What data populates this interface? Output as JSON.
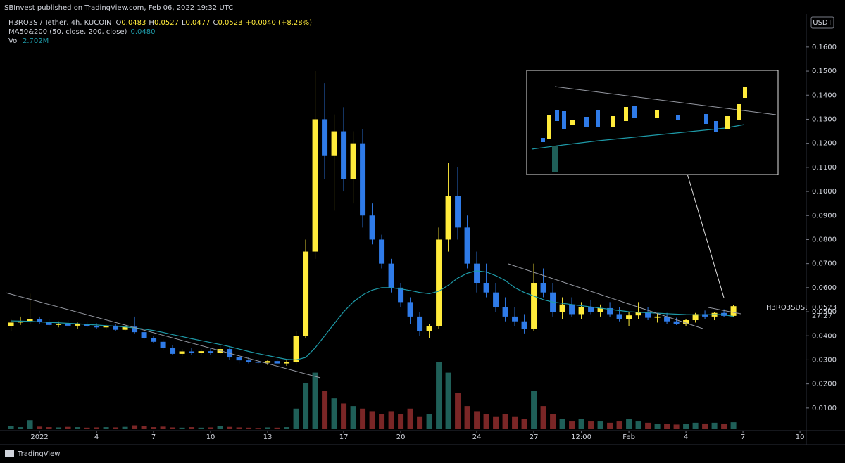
{
  "header": {
    "byline": "SBInvest published on TradingView.com, Feb 06, 2022 19:32 UTC"
  },
  "legend": {
    "symbol": "H3RO3S / Tether, 4h, KUCOIN",
    "fields": [
      {
        "label": "O",
        "value": "0.0483"
      },
      {
        "label": "H",
        "value": "0.0527"
      },
      {
        "label": "L",
        "value": "0.0477"
      },
      {
        "label": "C",
        "value": "0.0523"
      }
    ],
    "change": "+0.0040 (+8.28%)",
    "ma_label": "MA50&200 (50, close, 200, close)",
    "ma_value": "0.0480",
    "vol_label": "Vol",
    "vol_value": "2.702M"
  },
  "price_axis": {
    "currency": "USDT",
    "symbol": "H3RO3SUSDT",
    "last_price": "0.0523",
    "countdown": "27:27"
  },
  "footer": {
    "brand": "TradingView"
  },
  "chart_data": {
    "type": "candlestick",
    "up_color": "#ffeb3b",
    "down_color": "#2f7be8",
    "ma_color": "#1e9aa8",
    "volume_up_color": "#1f5f58",
    "volume_down_color": "#7a2626",
    "xlim": [
      -1.78,
      40.33
    ],
    "xticks": [
      {
        "value": 0,
        "label": "2022"
      },
      {
        "value": 3,
        "label": "4"
      },
      {
        "value": 6,
        "label": "7"
      },
      {
        "value": 9,
        "label": "10"
      },
      {
        "value": 12,
        "label": "13"
      },
      {
        "value": 16,
        "label": "17"
      },
      {
        "value": 19,
        "label": "20"
      },
      {
        "value": 23,
        "label": "24"
      },
      {
        "value": 26,
        "label": "27"
      },
      {
        "value": 28.5,
        "label": "12:00"
      },
      {
        "value": 31,
        "label": "Feb"
      },
      {
        "value": 34,
        "label": "4"
      },
      {
        "value": 37,
        "label": "7"
      },
      {
        "value": 40,
        "label": "10"
      }
    ],
    "ylim": [
      0.0006,
      0.1737
    ],
    "yticks": [
      {
        "value": 0.01,
        "label": "0.0100"
      },
      {
        "value": 0.02,
        "label": "0.0200"
      },
      {
        "value": 0.03,
        "label": "0.0300"
      },
      {
        "value": 0.04,
        "label": "0.0400"
      },
      {
        "value": 0.05,
        "label": "0.0500"
      },
      {
        "value": 0.06,
        "label": "0.0600"
      },
      {
        "value": 0.07,
        "label": "0.0700"
      },
      {
        "value": 0.08,
        "label": "0.0800"
      },
      {
        "value": 0.09,
        "label": "0.0900"
      },
      {
        "value": 0.1,
        "label": "0.1000"
      },
      {
        "value": 0.11,
        "label": "0.1100"
      },
      {
        "value": 0.12,
        "label": "0.1200"
      },
      {
        "value": 0.13,
        "label": "0.1300"
      },
      {
        "value": 0.14,
        "label": "0.1400"
      },
      {
        "value": 0.15,
        "label": "0.1500"
      },
      {
        "value": 0.16,
        "label": "0.1600"
      }
    ],
    "x": [
      -1.5,
      -1,
      -0.5,
      0,
      0.5,
      1,
      1.5,
      2,
      2.5,
      3,
      3.5,
      4,
      4.5,
      5,
      5.5,
      6,
      6.5,
      7,
      7.5,
      8,
      8.5,
      9,
      9.5,
      10,
      10.5,
      11,
      11.5,
      12,
      12.5,
      13,
      13.5,
      14,
      14.5,
      15,
      15.5,
      16,
      16.5,
      17,
      17.5,
      18,
      18.5,
      19,
      19.5,
      20,
      20.5,
      21,
      21.5,
      22,
      22.5,
      23,
      23.5,
      24,
      24.5,
      25,
      25.5,
      26,
      26.5,
      27,
      27.5,
      28,
      28.5,
      29,
      29.5,
      30,
      30.5,
      31,
      31.5,
      32,
      32.5,
      33,
      33.5,
      34,
      34.5,
      35,
      35.5,
      36,
      36.5
    ],
    "ohlc": [
      [
        0.044,
        0.047,
        0.042,
        0.0455
      ],
      [
        0.0455,
        0.048,
        0.0445,
        0.0462
      ],
      [
        0.0462,
        0.0575,
        0.045,
        0.047
      ],
      [
        0.047,
        0.048,
        0.045,
        0.0458
      ],
      [
        0.0458,
        0.047,
        0.044,
        0.0445
      ],
      [
        0.0445,
        0.046,
        0.0435,
        0.045
      ],
      [
        0.045,
        0.0465,
        0.044,
        0.0442
      ],
      [
        0.0442,
        0.0455,
        0.043,
        0.0448
      ],
      [
        0.0448,
        0.046,
        0.0435,
        0.044
      ],
      [
        0.044,
        0.0452,
        0.0428,
        0.0435
      ],
      [
        0.0435,
        0.0448,
        0.0425,
        0.0442
      ],
      [
        0.0442,
        0.045,
        0.042,
        0.0425
      ],
      [
        0.0425,
        0.0445,
        0.0418,
        0.0438
      ],
      [
        0.0438,
        0.048,
        0.041,
        0.0415
      ],
      [
        0.0415,
        0.0425,
        0.0385,
        0.039
      ],
      [
        0.039,
        0.04,
        0.037,
        0.0375
      ],
      [
        0.0375,
        0.0385,
        0.034,
        0.035
      ],
      [
        0.035,
        0.0362,
        0.032,
        0.0325
      ],
      [
        0.0325,
        0.0345,
        0.0315,
        0.0335
      ],
      [
        0.0335,
        0.035,
        0.032,
        0.0328
      ],
      [
        0.0328,
        0.0345,
        0.0318,
        0.0336
      ],
      [
        0.0336,
        0.035,
        0.0322,
        0.033
      ],
      [
        0.033,
        0.0365,
        0.0325,
        0.0345
      ],
      [
        0.0345,
        0.0355,
        0.03,
        0.031
      ],
      [
        0.031,
        0.0322,
        0.0285,
        0.0298
      ],
      [
        0.0298,
        0.031,
        0.0285,
        0.0292
      ],
      [
        0.0292,
        0.0305,
        0.028,
        0.0288
      ],
      [
        0.0288,
        0.03,
        0.0278,
        0.0295
      ],
      [
        0.0295,
        0.0305,
        0.028,
        0.0285
      ],
      [
        0.0285,
        0.0298,
        0.0275,
        0.029
      ],
      [
        0.029,
        0.042,
        0.028,
        0.04
      ],
      [
        0.04,
        0.08,
        0.039,
        0.075
      ],
      [
        0.075,
        0.15,
        0.072,
        0.13
      ],
      [
        0.13,
        0.145,
        0.105,
        0.115
      ],
      [
        0.115,
        0.132,
        0.092,
        0.125
      ],
      [
        0.125,
        0.135,
        0.1,
        0.105
      ],
      [
        0.105,
        0.125,
        0.095,
        0.12
      ],
      [
        0.12,
        0.126,
        0.085,
        0.09
      ],
      [
        0.09,
        0.095,
        0.078,
        0.08
      ],
      [
        0.08,
        0.082,
        0.068,
        0.07
      ],
      [
        0.07,
        0.072,
        0.058,
        0.06
      ],
      [
        0.06,
        0.062,
        0.052,
        0.054
      ],
      [
        0.054,
        0.056,
        0.045,
        0.048
      ],
      [
        0.048,
        0.05,
        0.04,
        0.042
      ],
      [
        0.042,
        0.045,
        0.039,
        0.044
      ],
      [
        0.044,
        0.085,
        0.043,
        0.08
      ],
      [
        0.08,
        0.112,
        0.075,
        0.098
      ],
      [
        0.098,
        0.11,
        0.08,
        0.085
      ],
      [
        0.085,
        0.09,
        0.068,
        0.07
      ],
      [
        0.07,
        0.075,
        0.058,
        0.062
      ],
      [
        0.062,
        0.07,
        0.056,
        0.058
      ],
      [
        0.058,
        0.062,
        0.05,
        0.052
      ],
      [
        0.052,
        0.056,
        0.046,
        0.048
      ],
      [
        0.048,
        0.052,
        0.044,
        0.046
      ],
      [
        0.046,
        0.049,
        0.041,
        0.043
      ],
      [
        0.043,
        0.07,
        0.042,
        0.062
      ],
      [
        0.062,
        0.068,
        0.056,
        0.058
      ],
      [
        0.058,
        0.062,
        0.048,
        0.05
      ],
      [
        0.05,
        0.056,
        0.047,
        0.053
      ],
      [
        0.053,
        0.056,
        0.048,
        0.049
      ],
      [
        0.049,
        0.054,
        0.047,
        0.052
      ],
      [
        0.052,
        0.055,
        0.049,
        0.05
      ],
      [
        0.05,
        0.053,
        0.048,
        0.0515
      ],
      [
        0.0515,
        0.054,
        0.048,
        0.049
      ],
      [
        0.049,
        0.052,
        0.046,
        0.047
      ],
      [
        0.047,
        0.05,
        0.044,
        0.0485
      ],
      [
        0.0485,
        0.054,
        0.047,
        0.05
      ],
      [
        0.05,
        0.052,
        0.0465,
        0.0475
      ],
      [
        0.0475,
        0.0495,
        0.0455,
        0.048
      ],
      [
        0.048,
        0.0495,
        0.045,
        0.046
      ],
      [
        0.046,
        0.0475,
        0.0445,
        0.045
      ],
      [
        0.045,
        0.047,
        0.044,
        0.0465
      ],
      [
        0.0465,
        0.0495,
        0.0455,
        0.049
      ],
      [
        0.049,
        0.0505,
        0.047,
        0.048
      ],
      [
        0.048,
        0.05,
        0.0465,
        0.0495
      ],
      [
        0.0495,
        0.051,
        0.0478,
        0.0483
      ],
      [
        0.0483,
        0.0527,
        0.0477,
        0.0523
      ]
    ],
    "ma": [
      0.0462,
      0.0461,
      0.046,
      0.0458,
      0.0456,
      0.0454,
      0.0452,
      0.045,
      0.0447,
      0.0445,
      0.0442,
      0.044,
      0.0437,
      0.0433,
      0.0428,
      0.0422,
      0.0414,
      0.0405,
      0.0397,
      0.0388,
      0.038,
      0.0372,
      0.0364,
      0.0355,
      0.0345,
      0.0335,
      0.0326,
      0.0318,
      0.031,
      0.0302,
      0.03,
      0.031,
      0.035,
      0.04,
      0.045,
      0.05,
      0.054,
      0.057,
      0.059,
      0.06,
      0.06,
      0.0595,
      0.0588,
      0.058,
      0.0575,
      0.0585,
      0.061,
      0.064,
      0.066,
      0.067,
      0.0665,
      0.065,
      0.063,
      0.06,
      0.058,
      0.0565,
      0.055,
      0.054,
      0.0535,
      0.053,
      0.0525,
      0.052,
      0.0515,
      0.051,
      0.0505,
      0.05,
      0.0498,
      0.0496,
      0.0494,
      0.0492,
      0.049,
      0.0488,
      0.0487,
      0.0487,
      0.0488,
      0.0488,
      0.048
    ],
    "volume": [
      1.2,
      0.8,
      3.5,
      1.0,
      0.8,
      0.7,
      0.9,
      0.8,
      0.6,
      0.7,
      0.8,
      0.7,
      0.9,
      1.5,
      1.2,
      0.8,
      1.0,
      0.7,
      0.6,
      0.8,
      0.6,
      0.7,
      1.2,
      0.9,
      0.7,
      0.6,
      0.5,
      0.7,
      0.6,
      0.8,
      8,
      18,
      22,
      15,
      12,
      10,
      9,
      8,
      7,
      6,
      7,
      6,
      8,
      5,
      6,
      26,
      22,
      14,
      9,
      7,
      6,
      5,
      6,
      5,
      4,
      15,
      9,
      6,
      4,
      3,
      4,
      3,
      3,
      2.5,
      3,
      4,
      3,
      2.5,
      2,
      2,
      1.8,
      2,
      2.5,
      2.2,
      2.5,
      2,
      2.702
    ]
  }
}
